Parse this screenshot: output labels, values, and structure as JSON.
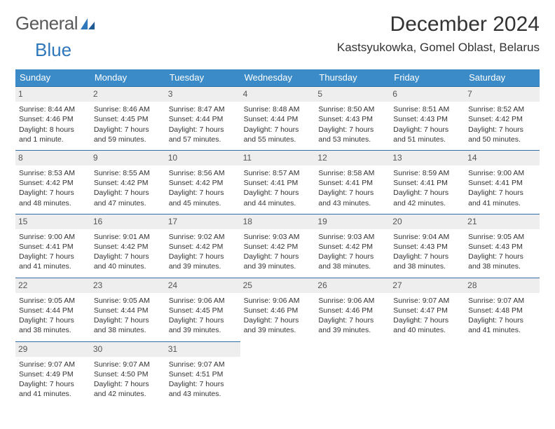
{
  "logo": {
    "word1": "General",
    "word2": "Blue"
  },
  "title": "December 2024",
  "location": "Kastsyukowka, Gomel Oblast, Belarus",
  "colors": {
    "header_bg": "#3b8bc9",
    "header_text": "#ffffff",
    "daynum_bg": "#eeeeee",
    "daynum_border": "#2f6fa8",
    "text": "#333333",
    "logo_gray": "#5a5a5a",
    "logo_blue": "#2f77bb",
    "page_bg": "#ffffff"
  },
  "dow": [
    "Sunday",
    "Monday",
    "Tuesday",
    "Wednesday",
    "Thursday",
    "Friday",
    "Saturday"
  ],
  "weeks": [
    [
      {
        "n": "1",
        "sr": "Sunrise: 8:44 AM",
        "ss": "Sunset: 4:46 PM",
        "dl": "Daylight: 8 hours and 1 minute."
      },
      {
        "n": "2",
        "sr": "Sunrise: 8:46 AM",
        "ss": "Sunset: 4:45 PM",
        "dl": "Daylight: 7 hours and 59 minutes."
      },
      {
        "n": "3",
        "sr": "Sunrise: 8:47 AM",
        "ss": "Sunset: 4:44 PM",
        "dl": "Daylight: 7 hours and 57 minutes."
      },
      {
        "n": "4",
        "sr": "Sunrise: 8:48 AM",
        "ss": "Sunset: 4:44 PM",
        "dl": "Daylight: 7 hours and 55 minutes."
      },
      {
        "n": "5",
        "sr": "Sunrise: 8:50 AM",
        "ss": "Sunset: 4:43 PM",
        "dl": "Daylight: 7 hours and 53 minutes."
      },
      {
        "n": "6",
        "sr": "Sunrise: 8:51 AM",
        "ss": "Sunset: 4:43 PM",
        "dl": "Daylight: 7 hours and 51 minutes."
      },
      {
        "n": "7",
        "sr": "Sunrise: 8:52 AM",
        "ss": "Sunset: 4:42 PM",
        "dl": "Daylight: 7 hours and 50 minutes."
      }
    ],
    [
      {
        "n": "8",
        "sr": "Sunrise: 8:53 AM",
        "ss": "Sunset: 4:42 PM",
        "dl": "Daylight: 7 hours and 48 minutes."
      },
      {
        "n": "9",
        "sr": "Sunrise: 8:55 AM",
        "ss": "Sunset: 4:42 PM",
        "dl": "Daylight: 7 hours and 47 minutes."
      },
      {
        "n": "10",
        "sr": "Sunrise: 8:56 AM",
        "ss": "Sunset: 4:42 PM",
        "dl": "Daylight: 7 hours and 45 minutes."
      },
      {
        "n": "11",
        "sr": "Sunrise: 8:57 AM",
        "ss": "Sunset: 4:41 PM",
        "dl": "Daylight: 7 hours and 44 minutes."
      },
      {
        "n": "12",
        "sr": "Sunrise: 8:58 AM",
        "ss": "Sunset: 4:41 PM",
        "dl": "Daylight: 7 hours and 43 minutes."
      },
      {
        "n": "13",
        "sr": "Sunrise: 8:59 AM",
        "ss": "Sunset: 4:41 PM",
        "dl": "Daylight: 7 hours and 42 minutes."
      },
      {
        "n": "14",
        "sr": "Sunrise: 9:00 AM",
        "ss": "Sunset: 4:41 PM",
        "dl": "Daylight: 7 hours and 41 minutes."
      }
    ],
    [
      {
        "n": "15",
        "sr": "Sunrise: 9:00 AM",
        "ss": "Sunset: 4:41 PM",
        "dl": "Daylight: 7 hours and 41 minutes."
      },
      {
        "n": "16",
        "sr": "Sunrise: 9:01 AM",
        "ss": "Sunset: 4:42 PM",
        "dl": "Daylight: 7 hours and 40 minutes."
      },
      {
        "n": "17",
        "sr": "Sunrise: 9:02 AM",
        "ss": "Sunset: 4:42 PM",
        "dl": "Daylight: 7 hours and 39 minutes."
      },
      {
        "n": "18",
        "sr": "Sunrise: 9:03 AM",
        "ss": "Sunset: 4:42 PM",
        "dl": "Daylight: 7 hours and 39 minutes."
      },
      {
        "n": "19",
        "sr": "Sunrise: 9:03 AM",
        "ss": "Sunset: 4:42 PM",
        "dl": "Daylight: 7 hours and 38 minutes."
      },
      {
        "n": "20",
        "sr": "Sunrise: 9:04 AM",
        "ss": "Sunset: 4:43 PM",
        "dl": "Daylight: 7 hours and 38 minutes."
      },
      {
        "n": "21",
        "sr": "Sunrise: 9:05 AM",
        "ss": "Sunset: 4:43 PM",
        "dl": "Daylight: 7 hours and 38 minutes."
      }
    ],
    [
      {
        "n": "22",
        "sr": "Sunrise: 9:05 AM",
        "ss": "Sunset: 4:44 PM",
        "dl": "Daylight: 7 hours and 38 minutes."
      },
      {
        "n": "23",
        "sr": "Sunrise: 9:05 AM",
        "ss": "Sunset: 4:44 PM",
        "dl": "Daylight: 7 hours and 38 minutes."
      },
      {
        "n": "24",
        "sr": "Sunrise: 9:06 AM",
        "ss": "Sunset: 4:45 PM",
        "dl": "Daylight: 7 hours and 39 minutes."
      },
      {
        "n": "25",
        "sr": "Sunrise: 9:06 AM",
        "ss": "Sunset: 4:46 PM",
        "dl": "Daylight: 7 hours and 39 minutes."
      },
      {
        "n": "26",
        "sr": "Sunrise: 9:06 AM",
        "ss": "Sunset: 4:46 PM",
        "dl": "Daylight: 7 hours and 39 minutes."
      },
      {
        "n": "27",
        "sr": "Sunrise: 9:07 AM",
        "ss": "Sunset: 4:47 PM",
        "dl": "Daylight: 7 hours and 40 minutes."
      },
      {
        "n": "28",
        "sr": "Sunrise: 9:07 AM",
        "ss": "Sunset: 4:48 PM",
        "dl": "Daylight: 7 hours and 41 minutes."
      }
    ],
    [
      {
        "n": "29",
        "sr": "Sunrise: 9:07 AM",
        "ss": "Sunset: 4:49 PM",
        "dl": "Daylight: 7 hours and 41 minutes."
      },
      {
        "n": "30",
        "sr": "Sunrise: 9:07 AM",
        "ss": "Sunset: 4:50 PM",
        "dl": "Daylight: 7 hours and 42 minutes."
      },
      {
        "n": "31",
        "sr": "Sunrise: 9:07 AM",
        "ss": "Sunset: 4:51 PM",
        "dl": "Daylight: 7 hours and 43 minutes."
      },
      null,
      null,
      null,
      null
    ]
  ]
}
